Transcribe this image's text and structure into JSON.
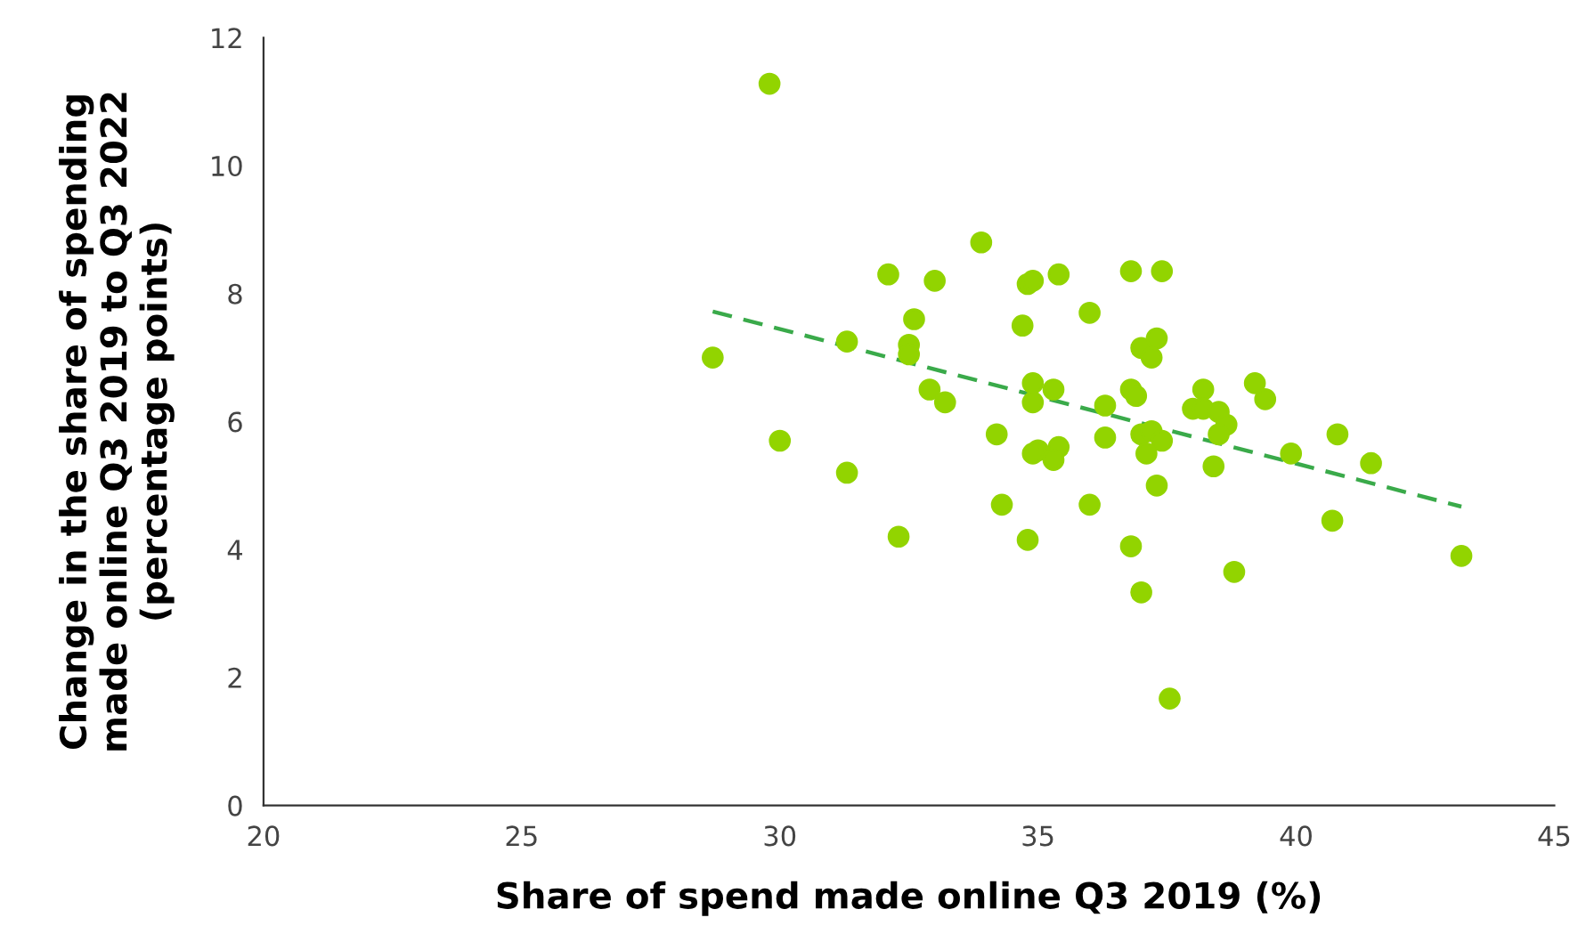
{
  "chart_data": {
    "type": "scatter",
    "xlabel": "Share of spend made online Q3 2019 (%)",
    "ylabel": "Change in the share of spending\nmade online Q3 2019 to Q3 2022\n(percentage points)",
    "xlim": [
      20,
      45
    ],
    "xticks": [
      20,
      25,
      30,
      35,
      40,
      45
    ],
    "ylim": [
      0,
      12
    ],
    "yticks": [
      0,
      2,
      4,
      6,
      8,
      10,
      12
    ],
    "grid": false,
    "marker": "circle",
    "series": [
      {
        "color": "#92d400",
        "x": [
          29.8,
          28.7,
          30.0,
          31.3,
          32.1,
          33.0,
          33.9,
          31.3,
          32.6,
          32.5,
          32.5,
          32.9,
          33.2,
          32.3,
          34.2,
          34.3,
          34.8,
          34.7,
          34.8,
          34.9,
          35.4,
          34.9,
          34.9,
          35.3,
          35.0,
          34.9,
          35.4,
          35.3,
          36.0,
          36.0,
          36.8,
          37.4,
          37.0,
          37.3,
          37.2,
          36.8,
          36.9,
          36.3,
          36.3,
          37.0,
          37.2,
          37.4,
          37.1,
          37.3,
          36.8,
          37.0,
          37.55,
          38.2,
          38.0,
          38.2,
          38.5,
          38.65,
          38.5,
          38.4,
          39.2,
          39.4,
          39.9,
          38.8,
          40.8,
          40.7,
          41.45,
          43.2
        ],
        "values": [
          11.28,
          7.0,
          5.7,
          5.2,
          8.3,
          8.2,
          8.8,
          7.25,
          7.6,
          7.2,
          7.05,
          6.5,
          6.3,
          4.2,
          5.8,
          4.7,
          4.15,
          7.5,
          8.15,
          8.2,
          8.3,
          6.6,
          6.3,
          6.5,
          5.55,
          5.5,
          5.6,
          5.4,
          4.7,
          7.7,
          8.35,
          8.35,
          7.15,
          7.3,
          7.0,
          6.5,
          6.4,
          6.25,
          5.75,
          5.8,
          5.85,
          5.7,
          5.5,
          5.0,
          4.05,
          3.33,
          1.67,
          6.5,
          6.2,
          6.2,
          6.15,
          5.95,
          5.8,
          5.3,
          6.6,
          6.35,
          5.5,
          3.65,
          5.8,
          4.45,
          5.35,
          3.9
        ]
      },
      {
        "type": "line",
        "color": "#3aaa4a",
        "line_style": "dashed",
        "marker": "none",
        "x": [
          28.7,
          43.2
        ],
        "values": [
          7.72,
          4.67
        ]
      }
    ]
  }
}
